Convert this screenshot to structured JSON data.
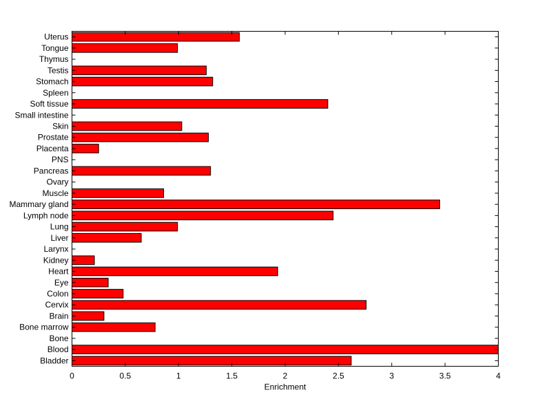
{
  "chart_data": {
    "type": "bar",
    "orientation": "horizontal",
    "categories": [
      "Bladder",
      "Blood",
      "Bone",
      "Bone marrow",
      "Brain",
      "Cervix",
      "Colon",
      "Eye",
      "Heart",
      "Kidney",
      "Larynx",
      "Liver",
      "Lung",
      "Lymph node",
      "Mammary gland",
      "Muscle",
      "Ovary",
      "Pancreas",
      "PNS",
      "Placenta",
      "Prostate",
      "Skin",
      "Small intestine",
      "Soft tissue",
      "Spleen",
      "Stomach",
      "Testis",
      "Thymus",
      "Tongue",
      "Uterus"
    ],
    "values": [
      2.62,
      4.0,
      0,
      0.78,
      0.3,
      2.76,
      0.48,
      0.34,
      1.93,
      0.21,
      0,
      0.65,
      0.99,
      2.45,
      3.45,
      0.86,
      0,
      1.3,
      0,
      0.25,
      1.28,
      1.03,
      0,
      2.4,
      0,
      1.32,
      1.26,
      0,
      0.99,
      1.57
    ],
    "xlabel": "Enrichment",
    "xlim": [
      0,
      4
    ],
    "xticks": [
      0,
      0.5,
      1,
      1.5,
      2,
      2.5,
      3,
      3.5,
      4
    ],
    "xtick_labels": [
      "0",
      "0.5",
      "1",
      "1.5",
      "2",
      "2.5",
      "3",
      "3.5",
      "4"
    ],
    "bar_color": "#ff0000",
    "edge_color": "#000000",
    "grid": false
  }
}
